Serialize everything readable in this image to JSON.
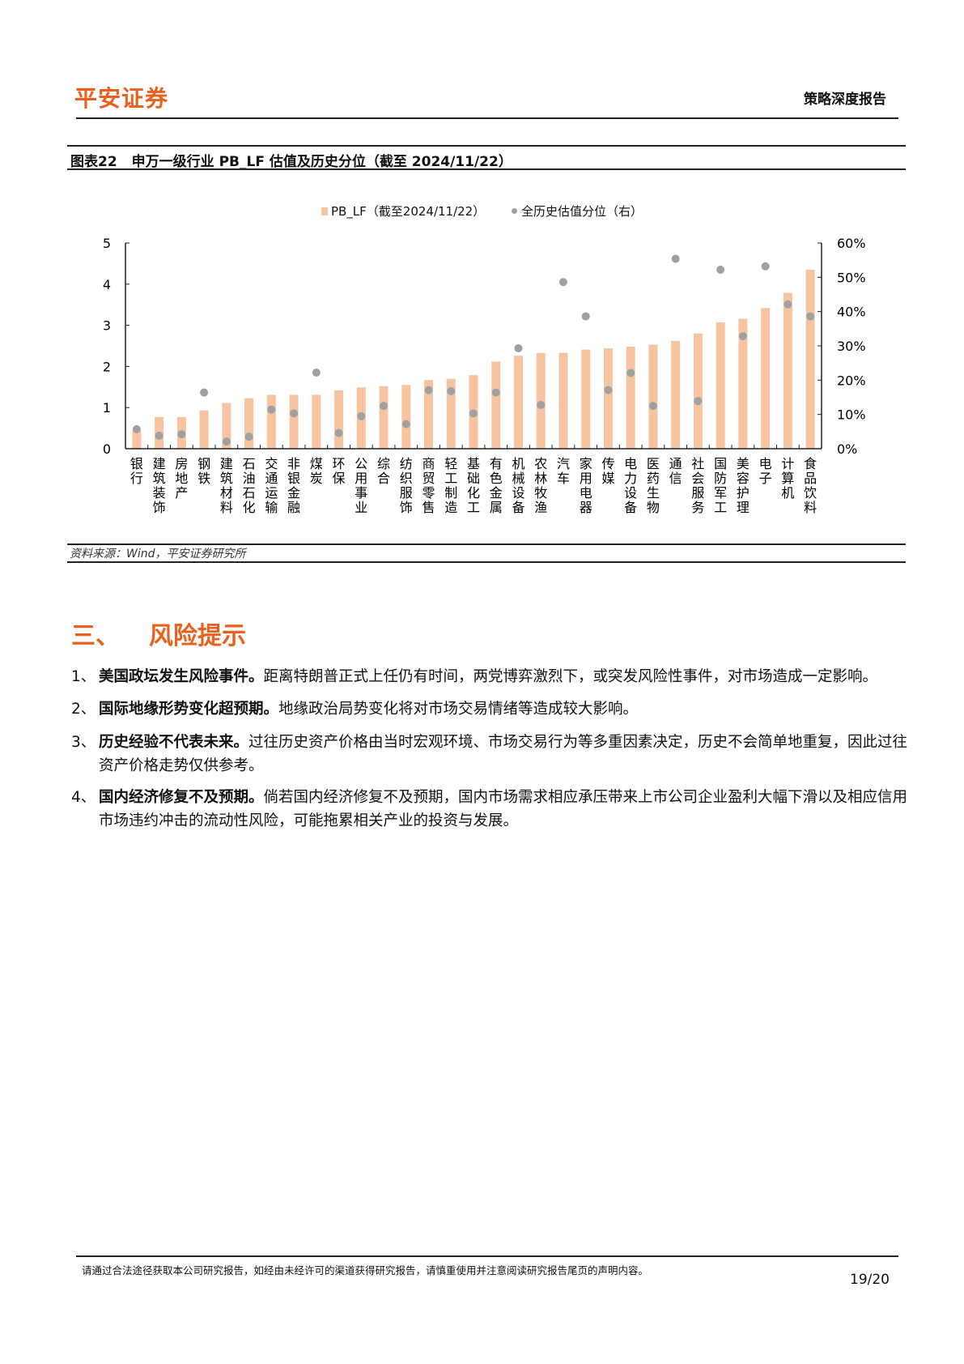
{
  "header": {
    "logo": "平安证券",
    "report_type": "策略深度报告"
  },
  "figure": {
    "number": "图表22",
    "title": "申万一级行业 PB_LF 估值及历史分位（截至 2024/11/22）",
    "source": "资料来源：Wind，平安证券研究所"
  },
  "chart_data": {
    "type": "bar",
    "title": "申万一级行业 PB_LF 估值及历史分位（截至 2024/11/22）",
    "legend": [
      "PB_LF（截至2024/11/22）",
      "全历史估值分位（右）"
    ],
    "legend_position": "top-center",
    "categories": [
      "银行",
      "建筑装饰",
      "房地产",
      "钢铁",
      "建筑材料",
      "石油石化",
      "交通运输",
      "非银金融",
      "煤炭",
      "环保",
      "公用事业",
      "综合",
      "纺织服饰",
      "商贸零售",
      "轻工制造",
      "基础化工",
      "有色金属",
      "机械设备",
      "农林牧渔",
      "汽车",
      "家用电器",
      "传媒",
      "电力设备",
      "医药生物",
      "通信",
      "社会服务",
      "国防军工",
      "美容护理",
      "电子",
      "计算机",
      "食品饮料"
    ],
    "series": [
      {
        "name": "PB_LF（截至2024/11/22）",
        "type": "bar",
        "axis": "left",
        "color": "#f6c4a1",
        "values": [
          0.44,
          0.77,
          0.77,
          0.93,
          1.11,
          1.23,
          1.31,
          1.31,
          1.31,
          1.42,
          1.49,
          1.52,
          1.55,
          1.67,
          1.7,
          1.79,
          2.12,
          2.26,
          2.33,
          2.33,
          2.41,
          2.44,
          2.48,
          2.53,
          2.62,
          2.8,
          3.07,
          3.16,
          3.42,
          3.79,
          4.35
        ]
      },
      {
        "name": "全历史估值分位（右）",
        "type": "scatter",
        "axis": "right",
        "color": "#a0a0a0",
        "values": [
          5.7,
          3.8,
          4.2,
          16.4,
          2.1,
          3.5,
          11.4,
          10.3,
          22.2,
          4.6,
          9.5,
          12.5,
          7.2,
          17.1,
          16.8,
          10.3,
          16.4,
          29.3,
          12.8,
          48.6,
          38.6,
          17.1,
          22.1,
          12.5,
          55.4,
          13.9,
          52.2,
          32.8,
          53.2,
          42.1,
          38.6
        ]
      }
    ],
    "yleft": {
      "lim": [
        0,
        5
      ],
      "ticks": [
        "0",
        "1",
        "2",
        "3",
        "4",
        "5"
      ]
    },
    "yright": {
      "lim": [
        0,
        60
      ],
      "ticks": [
        "0%",
        "10%",
        "20%",
        "30%",
        "40%",
        "50%",
        "60%"
      ]
    },
    "grid": false
  },
  "section": {
    "number": "三、",
    "title": "风险提示"
  },
  "risks": [
    {
      "num": "1、",
      "bold": "美国政坛发生风险事件。",
      "text": "距离特朗普正式上任仍有时间，两党博弈激烈下，或突发风险性事件，对市场造成一定影响。"
    },
    {
      "num": "2、",
      "bold": "国际地缘形势变化超预期。",
      "text": "地缘政治局势变化将对市场交易情绪等造成较大影响。"
    },
    {
      "num": "3、",
      "bold": "历史经验不代表未来。",
      "text": "过往历史资产价格由当时宏观环境、市场交易行为等多重因素决定，历史不会简单地重复，因此过往资产价格走势仅供参考。"
    },
    {
      "num": "4、",
      "bold": "国内经济修复不及预期。",
      "text": "倘若国内经济修复不及预期，国内市场需求相应承压带来上市公司企业盈利大幅下滑以及相应信用市场违约冲击的流动性风险，可能拖累相关产业的投资与发展。"
    }
  ],
  "footer": {
    "disclaimer": "请通过合法途径获取本公司研究报告，如经由未经许可的渠道获得研究报告，请慎重使用并注意阅读研究报告尾页的声明内容。",
    "page": "19/20"
  }
}
